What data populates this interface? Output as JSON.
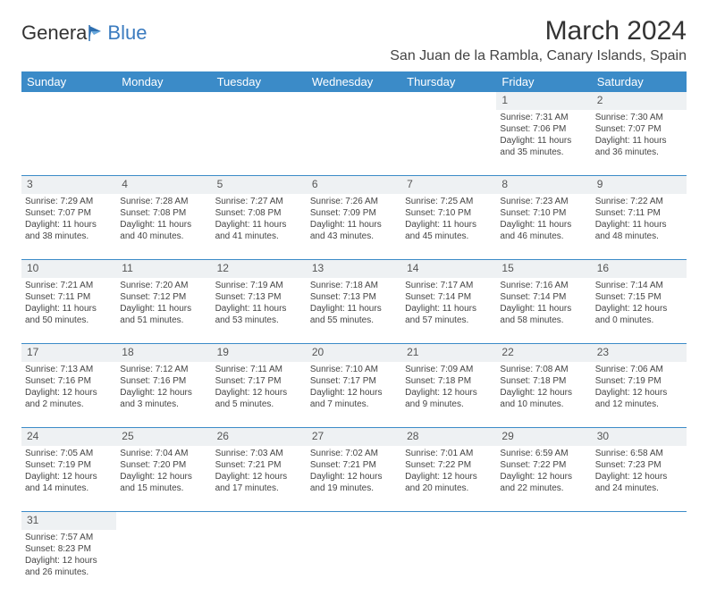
{
  "logo": {
    "text1": "Genera",
    "text2": "Blue"
  },
  "title": "March 2024",
  "location": "San Juan de la Rambla, Canary Islands, Spain",
  "colors": {
    "header_bg": "#3b8bc8",
    "header_text": "#ffffff",
    "daynum_bg": "#eef1f3",
    "row_border": "#3b8bc8",
    "logo_blue": "#3b7bbf"
  },
  "weekdays": [
    "Sunday",
    "Monday",
    "Tuesday",
    "Wednesday",
    "Thursday",
    "Friday",
    "Saturday"
  ],
  "weeks": [
    [
      null,
      null,
      null,
      null,
      null,
      {
        "n": "1",
        "sr": "Sunrise: 7:31 AM",
        "ss": "Sunset: 7:06 PM",
        "d1": "Daylight: 11 hours",
        "d2": "and 35 minutes."
      },
      {
        "n": "2",
        "sr": "Sunrise: 7:30 AM",
        "ss": "Sunset: 7:07 PM",
        "d1": "Daylight: 11 hours",
        "d2": "and 36 minutes."
      }
    ],
    [
      {
        "n": "3",
        "sr": "Sunrise: 7:29 AM",
        "ss": "Sunset: 7:07 PM",
        "d1": "Daylight: 11 hours",
        "d2": "and 38 minutes."
      },
      {
        "n": "4",
        "sr": "Sunrise: 7:28 AM",
        "ss": "Sunset: 7:08 PM",
        "d1": "Daylight: 11 hours",
        "d2": "and 40 minutes."
      },
      {
        "n": "5",
        "sr": "Sunrise: 7:27 AM",
        "ss": "Sunset: 7:08 PM",
        "d1": "Daylight: 11 hours",
        "d2": "and 41 minutes."
      },
      {
        "n": "6",
        "sr": "Sunrise: 7:26 AM",
        "ss": "Sunset: 7:09 PM",
        "d1": "Daylight: 11 hours",
        "d2": "and 43 minutes."
      },
      {
        "n": "7",
        "sr": "Sunrise: 7:25 AM",
        "ss": "Sunset: 7:10 PM",
        "d1": "Daylight: 11 hours",
        "d2": "and 45 minutes."
      },
      {
        "n": "8",
        "sr": "Sunrise: 7:23 AM",
        "ss": "Sunset: 7:10 PM",
        "d1": "Daylight: 11 hours",
        "d2": "and 46 minutes."
      },
      {
        "n": "9",
        "sr": "Sunrise: 7:22 AM",
        "ss": "Sunset: 7:11 PM",
        "d1": "Daylight: 11 hours",
        "d2": "and 48 minutes."
      }
    ],
    [
      {
        "n": "10",
        "sr": "Sunrise: 7:21 AM",
        "ss": "Sunset: 7:11 PM",
        "d1": "Daylight: 11 hours",
        "d2": "and 50 minutes."
      },
      {
        "n": "11",
        "sr": "Sunrise: 7:20 AM",
        "ss": "Sunset: 7:12 PM",
        "d1": "Daylight: 11 hours",
        "d2": "and 51 minutes."
      },
      {
        "n": "12",
        "sr": "Sunrise: 7:19 AM",
        "ss": "Sunset: 7:13 PM",
        "d1": "Daylight: 11 hours",
        "d2": "and 53 minutes."
      },
      {
        "n": "13",
        "sr": "Sunrise: 7:18 AM",
        "ss": "Sunset: 7:13 PM",
        "d1": "Daylight: 11 hours",
        "d2": "and 55 minutes."
      },
      {
        "n": "14",
        "sr": "Sunrise: 7:17 AM",
        "ss": "Sunset: 7:14 PM",
        "d1": "Daylight: 11 hours",
        "d2": "and 57 minutes."
      },
      {
        "n": "15",
        "sr": "Sunrise: 7:16 AM",
        "ss": "Sunset: 7:14 PM",
        "d1": "Daylight: 11 hours",
        "d2": "and 58 minutes."
      },
      {
        "n": "16",
        "sr": "Sunrise: 7:14 AM",
        "ss": "Sunset: 7:15 PM",
        "d1": "Daylight: 12 hours",
        "d2": "and 0 minutes."
      }
    ],
    [
      {
        "n": "17",
        "sr": "Sunrise: 7:13 AM",
        "ss": "Sunset: 7:16 PM",
        "d1": "Daylight: 12 hours",
        "d2": "and 2 minutes."
      },
      {
        "n": "18",
        "sr": "Sunrise: 7:12 AM",
        "ss": "Sunset: 7:16 PM",
        "d1": "Daylight: 12 hours",
        "d2": "and 3 minutes."
      },
      {
        "n": "19",
        "sr": "Sunrise: 7:11 AM",
        "ss": "Sunset: 7:17 PM",
        "d1": "Daylight: 12 hours",
        "d2": "and 5 minutes."
      },
      {
        "n": "20",
        "sr": "Sunrise: 7:10 AM",
        "ss": "Sunset: 7:17 PM",
        "d1": "Daylight: 12 hours",
        "d2": "and 7 minutes."
      },
      {
        "n": "21",
        "sr": "Sunrise: 7:09 AM",
        "ss": "Sunset: 7:18 PM",
        "d1": "Daylight: 12 hours",
        "d2": "and 9 minutes."
      },
      {
        "n": "22",
        "sr": "Sunrise: 7:08 AM",
        "ss": "Sunset: 7:18 PM",
        "d1": "Daylight: 12 hours",
        "d2": "and 10 minutes."
      },
      {
        "n": "23",
        "sr": "Sunrise: 7:06 AM",
        "ss": "Sunset: 7:19 PM",
        "d1": "Daylight: 12 hours",
        "d2": "and 12 minutes."
      }
    ],
    [
      {
        "n": "24",
        "sr": "Sunrise: 7:05 AM",
        "ss": "Sunset: 7:19 PM",
        "d1": "Daylight: 12 hours",
        "d2": "and 14 minutes."
      },
      {
        "n": "25",
        "sr": "Sunrise: 7:04 AM",
        "ss": "Sunset: 7:20 PM",
        "d1": "Daylight: 12 hours",
        "d2": "and 15 minutes."
      },
      {
        "n": "26",
        "sr": "Sunrise: 7:03 AM",
        "ss": "Sunset: 7:21 PM",
        "d1": "Daylight: 12 hours",
        "d2": "and 17 minutes."
      },
      {
        "n": "27",
        "sr": "Sunrise: 7:02 AM",
        "ss": "Sunset: 7:21 PM",
        "d1": "Daylight: 12 hours",
        "d2": "and 19 minutes."
      },
      {
        "n": "28",
        "sr": "Sunrise: 7:01 AM",
        "ss": "Sunset: 7:22 PM",
        "d1": "Daylight: 12 hours",
        "d2": "and 20 minutes."
      },
      {
        "n": "29",
        "sr": "Sunrise: 6:59 AM",
        "ss": "Sunset: 7:22 PM",
        "d1": "Daylight: 12 hours",
        "d2": "and 22 minutes."
      },
      {
        "n": "30",
        "sr": "Sunrise: 6:58 AM",
        "ss": "Sunset: 7:23 PM",
        "d1": "Daylight: 12 hours",
        "d2": "and 24 minutes."
      }
    ],
    [
      {
        "n": "31",
        "sr": "Sunrise: 7:57 AM",
        "ss": "Sunset: 8:23 PM",
        "d1": "Daylight: 12 hours",
        "d2": "and 26 minutes."
      },
      null,
      null,
      null,
      null,
      null,
      null
    ]
  ]
}
